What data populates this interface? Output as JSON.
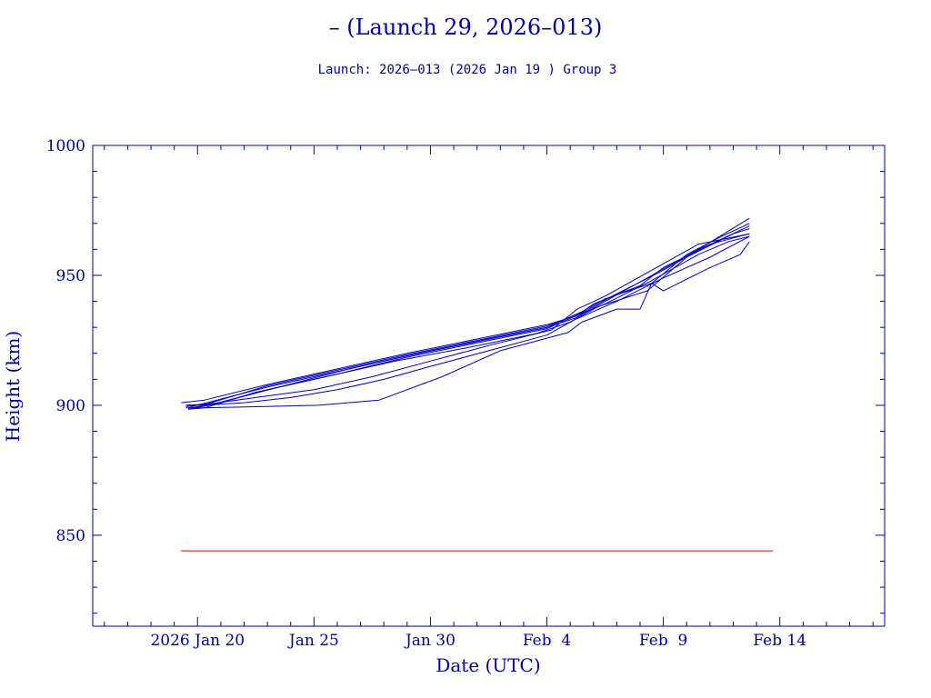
{
  "colors": {
    "axis": "#0000a0",
    "text": "#0000a0",
    "series": "#0000c8",
    "reference_line": "#e00000",
    "background": "#ffffff"
  },
  "chart_data": {
    "type": "line",
    "title": "– (Launch 29, 2026–013)",
    "subtitle": "Launch: 2026–013  (2026 Jan 19 )  Group 3",
    "xlabel": "Date (UTC)",
    "ylabel": "Height (km)",
    "x_unit": "days since 2026 Jan 20",
    "xlim": [
      -4.5,
      29.5
    ],
    "ylim": [
      815,
      1000
    ],
    "x_ticks": [
      {
        "value": 0,
        "label": "2026 Jan 20"
      },
      {
        "value": 5,
        "label": "Jan 25"
      },
      {
        "value": 10,
        "label": "Jan 30"
      },
      {
        "value": 15,
        "label": "Feb  4"
      },
      {
        "value": 20,
        "label": "Feb  9"
      },
      {
        "value": 25,
        "label": "Feb 14"
      }
    ],
    "y_ticks": [
      {
        "value": 850,
        "label": "850"
      },
      {
        "value": 900,
        "label": "900"
      },
      {
        "value": 950,
        "label": "950"
      },
      {
        "value": 1000,
        "label": "1000"
      }
    ],
    "reference_lines": [
      {
        "name": "reference-height",
        "y": 844,
        "x_start": -0.7,
        "x_end": 24.7
      }
    ],
    "series": [
      {
        "name": "object-1",
        "x": [
          -0.7,
          0.3,
          3,
          6,
          9,
          12,
          15,
          16.3,
          17,
          19,
          20,
          22,
          23.7
        ],
        "y": [
          901,
          902,
          908,
          914,
          920,
          925.5,
          931,
          934.5,
          939,
          946,
          953,
          962,
          966
        ]
      },
      {
        "name": "object-2",
        "x": [
          -0.4,
          0.5,
          3.5,
          6.5,
          9.5,
          12.5,
          15,
          16.5,
          17.5,
          19.5,
          21,
          22.5,
          23.7
        ],
        "y": [
          899,
          900,
          907,
          914,
          920,
          925.5,
          930,
          936,
          941,
          947,
          958,
          965,
          970
        ]
      },
      {
        "name": "object-3",
        "x": [
          -0.5,
          0.5,
          2.5,
          5,
          7.5,
          10,
          12.5,
          15.2,
          16.3,
          17.5,
          19.5,
          21.5,
          23.7
        ],
        "y": [
          900,
          900.5,
          903,
          906,
          911,
          917,
          923,
          929,
          937,
          942,
          952,
          962,
          966
        ]
      },
      {
        "name": "object-4",
        "x": [
          -0.4,
          0.3,
          2.5,
          5.5,
          8.5,
          11.5,
          14.5,
          16,
          17.2,
          19.3,
          21,
          23,
          23.7
        ],
        "y": [
          898.5,
          899,
          905,
          911,
          917,
          922,
          927.5,
          932,
          938,
          944,
          957,
          966,
          968
        ]
      },
      {
        "name": "object-5",
        "x": [
          -0.5,
          0.2,
          5.2,
          7.8,
          10.5,
          13,
          15.9,
          16.5,
          18,
          19,
          19.5,
          20,
          22,
          23.3,
          23.7
        ],
        "y": [
          899,
          899,
          900,
          902,
          911,
          921,
          928,
          932,
          937,
          937,
          947,
          944,
          953,
          958,
          963
        ]
      },
      {
        "name": "object-6",
        "x": [
          -0.4,
          0.5,
          3,
          6,
          9,
          12,
          15,
          16.4,
          17.5,
          19.5,
          21.5,
          22.8,
          23.7
        ],
        "y": [
          898.5,
          900,
          906,
          912,
          918.5,
          924,
          929.5,
          935,
          939,
          948,
          958,
          963,
          965
        ]
      },
      {
        "name": "object-7",
        "x": [
          -0.5,
          0.4,
          3,
          6,
          9,
          12,
          15,
          16.6,
          17.8,
          19.8,
          21.8,
          23.7
        ],
        "y": [
          899.5,
          900.5,
          907.5,
          913.5,
          919.5,
          925,
          930.5,
          936,
          942,
          951,
          961,
          969
        ]
      },
      {
        "name": "object-8",
        "x": [
          -0.3,
          0.4,
          3,
          6,
          9,
          12,
          15,
          16.2,
          17.5,
          19.5,
          21.5,
          23.7
        ],
        "y": [
          899.5,
          901,
          907,
          913,
          919,
          924.5,
          930,
          933.5,
          940,
          950,
          960,
          972
        ]
      },
      {
        "name": "object-9",
        "x": [
          -0.5,
          0.2,
          2,
          4,
          6,
          8,
          10,
          12.5,
          15,
          16.2,
          18,
          20,
          22,
          23.7
        ],
        "y": [
          900,
          900,
          901,
          903,
          906,
          910,
          915,
          921,
          927,
          933,
          940,
          949,
          957,
          965
        ]
      }
    ]
  }
}
